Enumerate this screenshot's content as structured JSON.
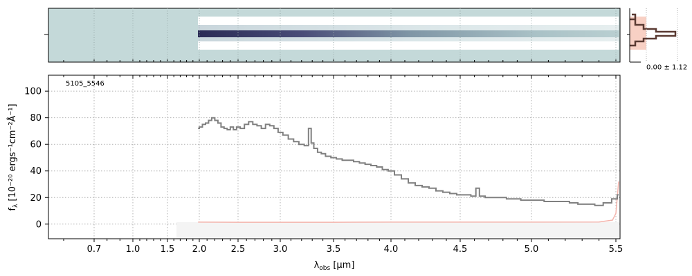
{
  "chart_data": [
    {
      "type": "heatmap",
      "panel": "2d spectrum",
      "background_color": "#c4d9d9",
      "trace_color": "#30305a"
    },
    {
      "type": "line",
      "panel": "1d spectrum",
      "annotation": "5105_5546",
      "xlabel_main": "λ",
      "xlabel_sub": "obs",
      "xlabel_unit": " [μm]",
      "ylabel_main": "f",
      "ylabel_sub": "λ",
      "ylabel_unit": " [10⁻²⁰ ergs⁻¹cm⁻²Å⁻¹]",
      "x_scale": "nonlinear (prism resolution)",
      "x_ticks": [
        "0.7",
        "1.0",
        "1.5",
        "2.0",
        "2.5",
        "3.0",
        "3.5",
        "4.0",
        "4.5",
        "5.0",
        "5.5"
      ],
      "y_ticks": [
        "0",
        "20",
        "40",
        "60",
        "80",
        "100"
      ],
      "ylim": [
        -11,
        112
      ],
      "xlim": [
        0.55,
        5.53
      ],
      "grid": true,
      "series": [
        {
          "role": "flux",
          "color": "#808080",
          "x": [
            1.98,
            2.02,
            2.06,
            2.1,
            2.14,
            2.18,
            2.22,
            2.26,
            2.3,
            2.34,
            2.38,
            2.42,
            2.46,
            2.5,
            2.55,
            2.6,
            2.65,
            2.7,
            2.75,
            2.8,
            2.85,
            2.9,
            2.95,
            3.0,
            3.05,
            3.1,
            3.15,
            3.2,
            3.25,
            3.28,
            3.3,
            3.33,
            3.37,
            3.4,
            3.45,
            3.5,
            3.55,
            3.6,
            3.65,
            3.7,
            3.75,
            3.8,
            3.85,
            3.9,
            3.95,
            4.0,
            4.05,
            4.1,
            4.15,
            4.2,
            4.25,
            4.3,
            4.35,
            4.4,
            4.45,
            4.5,
            4.55,
            4.6,
            4.62,
            4.65,
            4.7,
            4.75,
            4.8,
            4.85,
            4.9,
            4.95,
            5.0,
            5.05,
            5.1,
            5.15,
            5.2,
            5.25,
            5.3,
            5.35,
            5.4,
            5.45,
            5.5,
            5.52
          ],
          "y": [
            72,
            73,
            75,
            76,
            78,
            80,
            78,
            76,
            73,
            72,
            71,
            73,
            71,
            73,
            72,
            75,
            77,
            75,
            74,
            72,
            75,
            74,
            72,
            69,
            67,
            64,
            62,
            60,
            59,
            72,
            61,
            57,
            54,
            53,
            51,
            50,
            49,
            48,
            48,
            47,
            46,
            45,
            44,
            43,
            41,
            40,
            37,
            34,
            31,
            29,
            28,
            27,
            25,
            24,
            23,
            22,
            22,
            21,
            27,
            21,
            20,
            20,
            20,
            19,
            19,
            18,
            18,
            18,
            17,
            17,
            17,
            16,
            15,
            15,
            14,
            16,
            19,
            22
          ]
        },
        {
          "role": "uncertainty",
          "color": "#f4b4ac",
          "x": [
            1.98,
            2.5,
            3.0,
            3.5,
            4.0,
            4.5,
            5.0,
            5.4,
            5.48,
            5.5,
            5.51,
            5.52
          ],
          "y": [
            1.5,
            1.4,
            1.4,
            1.4,
            1.5,
            1.5,
            1.5,
            1.6,
            3,
            8,
            20,
            32
          ]
        }
      ]
    },
    {
      "type": "area",
      "panel": "profile",
      "tick_label": "0.00 ± 1.12",
      "colors": {
        "profile": "#5a3a32",
        "fill": "#f8d0c4"
      }
    }
  ]
}
